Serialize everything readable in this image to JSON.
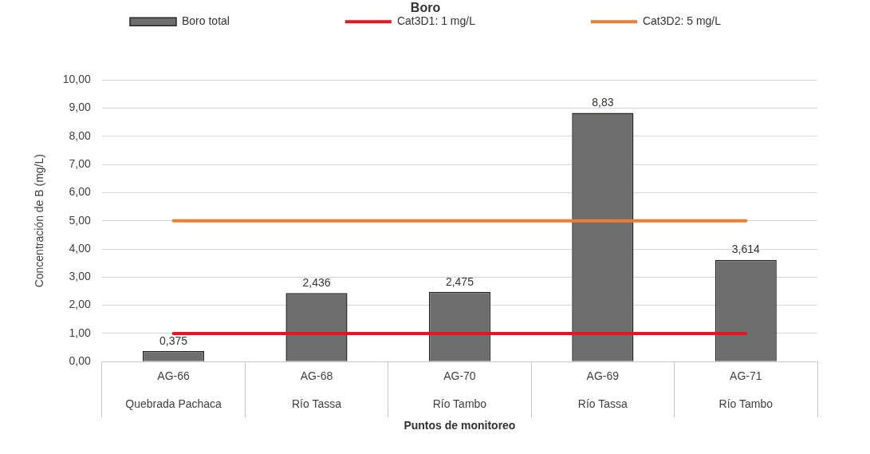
{
  "chart_data": {
    "type": "bar",
    "title": "Boro",
    "xlabel": "Puntos de monitoreo",
    "ylabel": "Concentración de B (mg/L)",
    "categories": [
      "AG-66\nQuebrada Pachaca",
      "AG-68\nRío Tassa",
      "AG-70\nRío Tambo",
      "AG-69\nRío Tassa",
      "AG-71\nRío Tambo"
    ],
    "series": [
      {
        "name": "Boro total",
        "color": "#6e6e6e",
        "values": [
          0.375,
          2.436,
          2.475,
          8.83,
          3.614
        ],
        "value_labels": [
          "0,375",
          "2,436",
          "2,475",
          "8,83",
          "3,614"
        ]
      },
      {
        "name": "Cat3D1: 1 mg/L",
        "type": "line",
        "color": "#e8141b",
        "values": [
          1,
          1,
          1,
          1,
          1
        ]
      },
      {
        "name": "Cat3D2: 5 mg/L",
        "type": "line",
        "color": "#ed7d31",
        "values": [
          5,
          5,
          5,
          5,
          5
        ]
      }
    ],
    "ylim": [
      0,
      10
    ],
    "yticks": [
      {
        "value": 0,
        "label": "0,00"
      },
      {
        "value": 1,
        "label": "1,00"
      },
      {
        "value": 2,
        "label": "2,00"
      },
      {
        "value": 3,
        "label": "3,00"
      },
      {
        "value": 4,
        "label": "4,00"
      },
      {
        "value": 5,
        "label": "5,00"
      },
      {
        "value": 6,
        "label": "6,00"
      },
      {
        "value": 7,
        "label": "7,00"
      },
      {
        "value": 8,
        "label": "8,00"
      },
      {
        "value": 9,
        "label": "9,00"
      },
      {
        "value": 10,
        "label": "10,00"
      }
    ],
    "grid": "y",
    "legend": "top",
    "marker": "none"
  }
}
